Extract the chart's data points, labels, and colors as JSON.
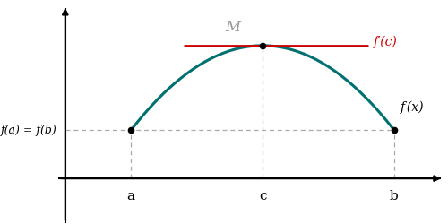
{
  "figsize": [
    5.0,
    2.5
  ],
  "dpi": 100,
  "background_color": "#ffffff",
  "curve_color": "#007070",
  "curve_linewidth": 2.2,
  "tangent_color": "#cc0000",
  "tangent_linewidth": 2.0,
  "dashed_color": "#aaaaaa",
  "dashed_linewidth": 0.9,
  "dot_color": "#000000",
  "dot_size": 4.5,
  "a": 1.0,
  "b": 5.0,
  "c": 3.0,
  "fa": 0.6,
  "fc": 1.65,
  "axis_color": "#000000",
  "axis_linewidth": 1.5,
  "label_fa": "f(a) = f(b)",
  "label_M": "M",
  "label_fprimec": "f′(c)",
  "label_fx": "f (x)",
  "label_a": "a",
  "label_b": "b",
  "label_c": "c",
  "xlim": [
    -0.1,
    5.8
  ],
  "ylim": [
    -0.55,
    2.2
  ],
  "tangent_xstart": 1.8,
  "tangent_xend": 4.6
}
